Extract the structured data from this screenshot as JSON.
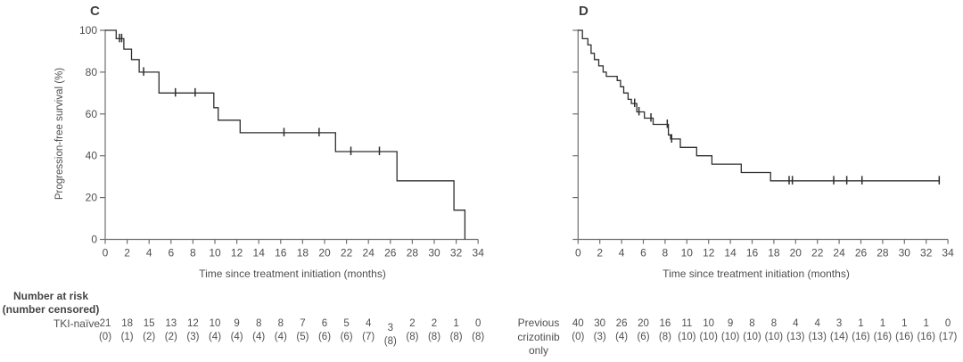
{
  "colors": {
    "curve": "#2e2e2e",
    "axis": "#6e6e6e",
    "text": "#4f4f4f"
  },
  "chart_data": [
    {
      "type": "line",
      "subtype": "kaplan_meier_step",
      "title": "C",
      "series_name": "TKI-naïve",
      "xlabel": "Time since treatment initiation (months)",
      "ylabel": "Progression-free survival (%)",
      "xlim": [
        0,
        34
      ],
      "ylim": [
        0,
        100
      ],
      "xticks": [
        0,
        2,
        4,
        6,
        8,
        10,
        12,
        14,
        16,
        18,
        20,
        22,
        24,
        26,
        28,
        30,
        32,
        34
      ],
      "yticks": [
        0,
        20,
        40,
        60,
        80,
        100
      ],
      "y_tick_labels_visible": true,
      "grid": false,
      "legend": "none",
      "steps": [
        [
          0,
          100
        ],
        [
          1.0,
          96
        ],
        [
          1.7,
          91
        ],
        [
          2.4,
          86
        ],
        [
          3.1,
          80
        ],
        [
          4.9,
          70
        ],
        [
          9.9,
          63
        ],
        [
          10.3,
          57
        ],
        [
          12.3,
          51
        ],
        [
          21.0,
          42
        ],
        [
          26.6,
          28
        ],
        [
          31.8,
          14
        ],
        [
          32.8,
          0
        ]
      ],
      "end_month": 32.8,
      "censor_marks": [
        [
          1.3,
          96
        ],
        [
          1.5,
          96
        ],
        [
          3.5,
          80
        ],
        [
          6.4,
          70
        ],
        [
          8.2,
          70
        ],
        [
          16.3,
          51
        ],
        [
          19.5,
          51
        ],
        [
          22.4,
          42
        ],
        [
          25.0,
          42
        ]
      ]
    },
    {
      "type": "line",
      "subtype": "kaplan_meier_step",
      "title": "D",
      "series_name": "Previous crizotinib only",
      "xlabel": "Time since treatment initiation (months)",
      "ylabel": "",
      "xlim": [
        0,
        34
      ],
      "ylim": [
        0,
        100
      ],
      "xticks": [
        0,
        2,
        4,
        6,
        8,
        10,
        12,
        14,
        16,
        18,
        20,
        22,
        24,
        26,
        28,
        30,
        32,
        34
      ],
      "yticks": [
        0,
        20,
        40,
        60,
        80,
        100
      ],
      "y_tick_labels_visible": false,
      "grid": false,
      "legend": "none",
      "steps": [
        [
          0,
          100
        ],
        [
          0.4,
          96
        ],
        [
          0.9,
          93
        ],
        [
          1.2,
          89
        ],
        [
          1.5,
          86
        ],
        [
          1.9,
          83
        ],
        [
          2.3,
          80
        ],
        [
          2.6,
          78
        ],
        [
          3.6,
          76
        ],
        [
          3.9,
          73
        ],
        [
          4.2,
          70
        ],
        [
          4.6,
          67
        ],
        [
          4.9,
          65
        ],
        [
          5.4,
          61
        ],
        [
          6.1,
          58
        ],
        [
          6.9,
          55
        ],
        [
          8.3,
          50
        ],
        [
          8.5,
          48
        ],
        [
          9.4,
          44
        ],
        [
          10.9,
          40
        ],
        [
          12.3,
          36
        ],
        [
          15.0,
          32
        ],
        [
          17.7,
          28
        ]
      ],
      "end_month": 33.2,
      "censor_marks": [
        [
          5.2,
          65
        ],
        [
          5.6,
          61
        ],
        [
          6.7,
          58
        ],
        [
          8.2,
          55
        ],
        [
          8.6,
          48
        ],
        [
          19.4,
          28
        ],
        [
          19.7,
          28
        ],
        [
          23.5,
          28
        ],
        [
          24.7,
          28
        ],
        [
          26.1,
          28
        ],
        [
          33.2,
          28
        ]
      ]
    }
  ],
  "risk_tables": [
    {
      "header_line1": "Number at risk",
      "header_line2": "(number censored)",
      "row_label_lines": [
        "TKI-naïve"
      ],
      "months": [
        0,
        2,
        4,
        6,
        8,
        10,
        12,
        14,
        16,
        18,
        20,
        22,
        24,
        26,
        28,
        30,
        32,
        34
      ],
      "at_risk": [
        "21",
        "18",
        "15",
        "13",
        "12",
        "10",
        "9",
        "8",
        "8",
        "7",
        "6",
        "5",
        "4",
        "3",
        "2",
        "2",
        "1",
        "0"
      ],
      "censored": [
        "(0)",
        "(1)",
        "(2)",
        "(2)",
        "(3)",
        "(4)",
        "(4)",
        "(4)",
        "(4)",
        "(5)",
        "(6)",
        "(6)",
        "(7)",
        "(8)",
        "(8)",
        "(8)",
        "(8)",
        "(8)"
      ],
      "offset_cells": [
        13
      ]
    },
    {
      "header_line1": "",
      "header_line2": "",
      "row_label_lines": [
        "Previous",
        "crizotinib",
        "only"
      ],
      "months": [
        0,
        2,
        4,
        6,
        8,
        10,
        12,
        14,
        16,
        18,
        20,
        22,
        24,
        26,
        28,
        30,
        32,
        34
      ],
      "at_risk": [
        "40",
        "30",
        "26",
        "20",
        "16",
        "11",
        "10",
        "9",
        "8",
        "8",
        "4",
        "4",
        "3",
        "1",
        "1",
        "1",
        "1",
        "0"
      ],
      "censored": [
        "(0)",
        "(3)",
        "(4)",
        "(6)",
        "(8)",
        "(10)",
        "(10)",
        "(10)",
        "(10)",
        "(10)",
        "(13)",
        "(13)",
        "(14)",
        "(16)",
        "(16)",
        "(16)",
        "(16)",
        "(17)"
      ],
      "offset_cells": []
    }
  ]
}
